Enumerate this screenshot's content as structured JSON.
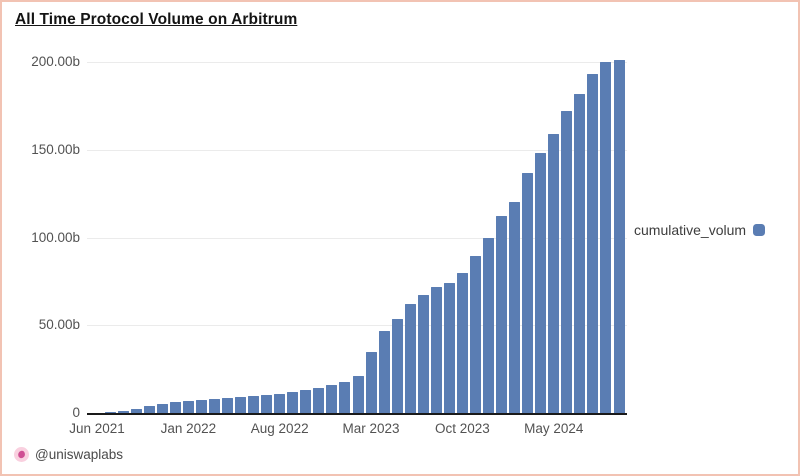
{
  "page": {
    "title": "All Time Protocol Volume on Arbitrum",
    "attribution": "@uniswaplabs"
  },
  "legend": {
    "label": "cumulative_volum"
  },
  "colors": {
    "bar": "#5a7db3",
    "card_border": "#f2c3b3",
    "gridline": "#ebebeb",
    "baseline": "#1a1a1a",
    "axis_text": "#525252",
    "legend_text": "#3d3d3d",
    "logo_pink_bg": "#f9d0df",
    "logo_pink_fg": "#cf4f93"
  },
  "chart_data": {
    "type": "bar",
    "title": "All Time Protocol Volume on Arbitrum",
    "series_name": "cumulative_volum",
    "unit": "USD billions",
    "x": [
      "Jun 2021",
      "Jul 2021",
      "Aug 2021",
      "Sep 2021",
      "Oct 2021",
      "Nov 2021",
      "Dec 2021",
      "Jan 2022",
      "Feb 2022",
      "Mar 2022",
      "Apr 2022",
      "May 2022",
      "Jun 2022",
      "Jul 2022",
      "Aug 2022",
      "Sep 2022",
      "Oct 2022",
      "Nov 2022",
      "Dec 2022",
      "Jan 2023",
      "Feb 2023",
      "Mar 2023",
      "Apr 2023",
      "May 2023",
      "Jun 2023",
      "Jul 2023",
      "Aug 2023",
      "Sep 2023",
      "Oct 2023",
      "Nov 2023",
      "Dec 2023",
      "Jan 2024",
      "Feb 2024",
      "Mar 2024",
      "Apr 2024",
      "May 2024",
      "Jun 2024",
      "Jul 2024",
      "Aug 2024",
      "Sep 2024",
      "Oct 2024"
    ],
    "values": [
      0.1,
      0.3,
      1.0,
      2.4,
      3.9,
      5.1,
      6.2,
      7.0,
      7.7,
      8.1,
      8.4,
      9.0,
      9.7,
      10.2,
      11.0,
      12.0,
      13.0,
      14.0,
      16.0,
      17.5,
      21.0,
      35.0,
      47.0,
      53.5,
      62.0,
      67.5,
      72.0,
      74.0,
      79.5,
      89.5,
      100.0,
      112.0,
      120.0,
      137.0,
      148.0,
      159.0,
      172.0,
      182.0,
      193.0,
      200.0,
      201.0
    ],
    "x_tick_labels": [
      "Jun 2021",
      "Jan 2022",
      "Aug 2022",
      "Mar 2023",
      "Oct 2023",
      "May 2024"
    ],
    "x_tick_indices": [
      0,
      7,
      14,
      21,
      28,
      35
    ],
    "y_tick_labels": [
      "0",
      "50.00b",
      "100.00b",
      "150.00b",
      "200.00b"
    ],
    "y_tick_values": [
      0,
      50,
      100,
      150,
      200
    ],
    "ylim": [
      0,
      201.5
    ],
    "grid": "horizontal-only",
    "legend_position": "right-middle"
  }
}
